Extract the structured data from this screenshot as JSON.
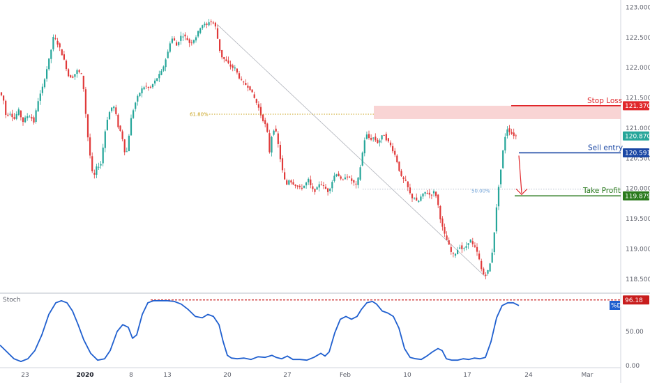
{
  "chart_data": [
    {
      "type": "candlestick",
      "title": "",
      "x_tick_labels": [
        "23",
        "2020",
        "8",
        "13",
        "20",
        "27",
        "Feb",
        "10",
        "17",
        "24",
        "Mar"
      ],
      "y_ticks": [
        "123.000",
        "122.500",
        "122.000",
        "121.500",
        "121.000",
        "120.500",
        "120.000",
        "119.500",
        "119.000",
        "118.500"
      ],
      "ylim": [
        118.28,
        123.12
      ],
      "price_path": [
        [
          0,
          121.6
        ],
        [
          6,
          121.5
        ],
        [
          10,
          121.2
        ],
        [
          16,
          121.25
        ],
        [
          22,
          121.15
        ],
        [
          28,
          121.3
        ],
        [
          34,
          121.1
        ],
        [
          40,
          121.2
        ],
        [
          45,
          121.2
        ],
        [
          50,
          121.1
        ],
        [
          56,
          121.45
        ],
        [
          62,
          121.65
        ],
        [
          68,
          121.95
        ],
        [
          74,
          122.25
        ],
        [
          78,
          122.5
        ],
        [
          82,
          122.45
        ],
        [
          88,
          122.3
        ],
        [
          94,
          122.1
        ],
        [
          100,
          121.85
        ],
        [
          106,
          121.85
        ],
        [
          112,
          121.95
        ],
        [
          118,
          121.9
        ],
        [
          122,
          121.6
        ],
        [
          126,
          121.0
        ],
        [
          130,
          120.6
        ],
        [
          135,
          120.15
        ],
        [
          140,
          120.35
        ],
        [
          146,
          120.4
        ],
        [
          150,
          120.75
        ],
        [
          154,
          121.1
        ],
        [
          158,
          121.25
        ],
        [
          162,
          121.35
        ],
        [
          166,
          121.35
        ],
        [
          170,
          121.05
        ],
        [
          176,
          120.9
        ],
        [
          182,
          120.5
        ],
        [
          186,
          120.85
        ],
        [
          190,
          121.2
        ],
        [
          195,
          121.4
        ],
        [
          200,
          121.55
        ],
        [
          205,
          121.65
        ],
        [
          210,
          121.7
        ],
        [
          216,
          121.65
        ],
        [
          222,
          121.75
        ],
        [
          228,
          121.85
        ],
        [
          234,
          121.95
        ],
        [
          238,
          122.1
        ],
        [
          242,
          122.25
        ],
        [
          246,
          122.45
        ],
        [
          250,
          122.5
        ],
        [
          254,
          122.35
        ],
        [
          258,
          122.45
        ],
        [
          262,
          122.55
        ],
        [
          268,
          122.5
        ],
        [
          274,
          122.4
        ],
        [
          278,
          122.45
        ],
        [
          282,
          122.5
        ],
        [
          286,
          122.6
        ],
        [
          290,
          122.7
        ],
        [
          294,
          122.72
        ],
        [
          298,
          122.7
        ],
        [
          302,
          122.78
        ],
        [
          306,
          122.75
        ],
        [
          310,
          122.7
        ],
        [
          314,
          122.45
        ],
        [
          318,
          122.2
        ],
        [
          322,
          122.15
        ],
        [
          326,
          122.1
        ],
        [
          330,
          122.05
        ],
        [
          334,
          122.0
        ],
        [
          338,
          122.0
        ],
        [
          342,
          121.9
        ],
        [
          346,
          121.8
        ],
        [
          350,
          121.75
        ],
        [
          356,
          121.7
        ],
        [
          360,
          121.65
        ],
        [
          364,
          121.55
        ],
        [
          368,
          121.45
        ],
        [
          372,
          121.35
        ],
        [
          376,
          121.2
        ],
        [
          380,
          121.1
        ],
        [
          384,
          121.0
        ],
        [
          388,
          120.6
        ],
        [
          392,
          120.95
        ],
        [
          396,
          121.0
        ],
        [
          400,
          120.75
        ],
        [
          404,
          120.45
        ],
        [
          408,
          120.2
        ],
        [
          412,
          120.05
        ],
        [
          416,
          120.15
        ],
        [
          420,
          120.1
        ],
        [
          426,
          120.05
        ],
        [
          432,
          120.0
        ],
        [
          438,
          120.05
        ],
        [
          444,
          120.15
        ],
        [
          448,
          120.0
        ],
        [
          452,
          119.95
        ],
        [
          456,
          120.0
        ],
        [
          460,
          120.1
        ],
        [
          464,
          120.05
        ],
        [
          468,
          120.0
        ],
        [
          472,
          119.95
        ],
        [
          476,
          120.05
        ],
        [
          480,
          120.2
        ],
        [
          484,
          120.25
        ],
        [
          488,
          120.2
        ],
        [
          492,
          120.1
        ],
        [
          496,
          120.2
        ],
        [
          500,
          120.2
        ],
        [
          504,
          120.15
        ],
        [
          508,
          120.1
        ],
        [
          512,
          120.05
        ],
        [
          516,
          120.2
        ],
        [
          520,
          120.5
        ],
        [
          524,
          120.8
        ],
        [
          528,
          120.9
        ],
        [
          532,
          120.8
        ],
        [
          536,
          120.85
        ],
        [
          540,
          120.8
        ],
        [
          544,
          120.75
        ],
        [
          548,
          120.85
        ],
        [
          552,
          120.9
        ],
        [
          556,
          120.8
        ],
        [
          560,
          120.75
        ],
        [
          564,
          120.65
        ],
        [
          568,
          120.55
        ],
        [
          572,
          120.4
        ],
        [
          576,
          120.2
        ],
        [
          580,
          120.15
        ],
        [
          584,
          120.1
        ],
        [
          588,
          119.95
        ],
        [
          592,
          119.85
        ],
        [
          596,
          119.85
        ],
        [
          600,
          119.75
        ],
        [
          604,
          119.85
        ],
        [
          608,
          119.9
        ],
        [
          612,
          119.95
        ],
        [
          616,
          119.9
        ],
        [
          620,
          119.9
        ],
        [
          624,
          119.95
        ],
        [
          628,
          119.85
        ],
        [
          632,
          119.55
        ],
        [
          636,
          119.35
        ],
        [
          640,
          119.2
        ],
        [
          644,
          119.1
        ],
        [
          648,
          118.95
        ],
        [
          652,
          118.9
        ],
        [
          656,
          118.95
        ],
        [
          660,
          119.05
        ],
        [
          664,
          119.0
        ],
        [
          668,
          119.0
        ],
        [
          672,
          119.1
        ],
        [
          676,
          119.15
        ],
        [
          680,
          119.05
        ],
        [
          684,
          119.0
        ],
        [
          688,
          118.85
        ],
        [
          692,
          118.65
        ],
        [
          696,
          118.55
        ],
        [
          700,
          118.6
        ],
        [
          704,
          118.75
        ],
        [
          708,
          119.0
        ],
        [
          712,
          119.5
        ],
        [
          716,
          120.0
        ],
        [
          720,
          120.35
        ],
        [
          724,
          120.75
        ],
        [
          728,
          121.0
        ],
        [
          732,
          120.95
        ],
        [
          736,
          120.9
        ],
        [
          740,
          120.87
        ]
      ],
      "annotations": {
        "stop_loss": {
          "label": "Stop Loss",
          "price_label": "121.370",
          "price": 121.37,
          "color": "#e0262a"
        },
        "sell_entry": {
          "label": "Sell entry",
          "price_label": "120.591",
          "price": 120.591,
          "color": "#1a47a4"
        },
        "take_profit": {
          "label": "Take Profit",
          "price_label": "119.879",
          "price": 119.879,
          "color": "#2a7a1d"
        },
        "last_price": {
          "price_label": "120.870",
          "price": 120.87,
          "color": "#26a69a"
        },
        "fib_618": {
          "label": "61.80%",
          "price": 121.23,
          "color": "#c8a11a"
        },
        "fib_50": {
          "label": "50.00%",
          "price": 119.99,
          "color": "#6b9fd6"
        },
        "resistance_zone": {
          "price_low": 121.15,
          "price_high": 121.37,
          "color": "#f7c5c5"
        }
      },
      "up_color": "#26a69a",
      "down_color": "#e03a3a"
    },
    {
      "type": "line",
      "title": "Stoch",
      "series": [
        {
          "name": "%D",
          "color": "#1f5fcf"
        }
      ],
      "y_ticks": [
        "50.00",
        "0.00"
      ],
      "ylim": [
        0,
        100
      ],
      "level": {
        "price_label": "96.18",
        "value": 96.18,
        "color": "#c81d1d"
      },
      "values": [
        [
          0,
          30
        ],
        [
          10,
          20
        ],
        [
          20,
          10
        ],
        [
          30,
          6
        ],
        [
          40,
          10
        ],
        [
          50,
          22
        ],
        [
          60,
          45
        ],
        [
          70,
          75
        ],
        [
          80,
          92
        ],
        [
          88,
          95
        ],
        [
          96,
          92
        ],
        [
          104,
          80
        ],
        [
          112,
          60
        ],
        [
          120,
          38
        ],
        [
          130,
          18
        ],
        [
          140,
          8
        ],
        [
          150,
          10
        ],
        [
          158,
          22
        ],
        [
          168,
          50
        ],
        [
          176,
          60
        ],
        [
          184,
          56
        ],
        [
          190,
          40
        ],
        [
          196,
          45
        ],
        [
          204,
          75
        ],
        [
          212,
          92
        ],
        [
          220,
          95
        ],
        [
          230,
          95
        ],
        [
          240,
          95
        ],
        [
          250,
          94
        ],
        [
          260,
          90
        ],
        [
          270,
          82
        ],
        [
          280,
          72
        ],
        [
          290,
          70
        ],
        [
          298,
          75
        ],
        [
          306,
          72
        ],
        [
          314,
          60
        ],
        [
          320,
          35
        ],
        [
          326,
          15
        ],
        [
          332,
          11
        ],
        [
          340,
          10
        ],
        [
          350,
          11
        ],
        [
          360,
          9
        ],
        [
          370,
          13
        ],
        [
          380,
          12
        ],
        [
          390,
          15
        ],
        [
          396,
          12
        ],
        [
          404,
          10
        ],
        [
          412,
          14
        ],
        [
          420,
          9
        ],
        [
          430,
          9
        ],
        [
          440,
          8
        ],
        [
          450,
          12
        ],
        [
          460,
          18
        ],
        [
          466,
          14
        ],
        [
          472,
          20
        ],
        [
          480,
          48
        ],
        [
          488,
          68
        ],
        [
          496,
          72
        ],
        [
          504,
          68
        ],
        [
          512,
          72
        ],
        [
          518,
          82
        ],
        [
          526,
          92
        ],
        [
          534,
          94
        ],
        [
          540,
          90
        ],
        [
          548,
          80
        ],
        [
          556,
          77
        ],
        [
          564,
          72
        ],
        [
          572,
          55
        ],
        [
          580,
          25
        ],
        [
          588,
          12
        ],
        [
          596,
          10
        ],
        [
          604,
          9
        ],
        [
          612,
          14
        ],
        [
          620,
          20
        ],
        [
          628,
          25
        ],
        [
          634,
          22
        ],
        [
          640,
          10
        ],
        [
          648,
          8
        ],
        [
          656,
          8
        ],
        [
          664,
          10
        ],
        [
          672,
          9
        ],
        [
          680,
          11
        ],
        [
          688,
          10
        ],
        [
          696,
          12
        ],
        [
          704,
          35
        ],
        [
          712,
          70
        ],
        [
          720,
          88
        ],
        [
          728,
          92
        ],
        [
          736,
          92
        ],
        [
          744,
          88
        ]
      ]
    }
  ]
}
